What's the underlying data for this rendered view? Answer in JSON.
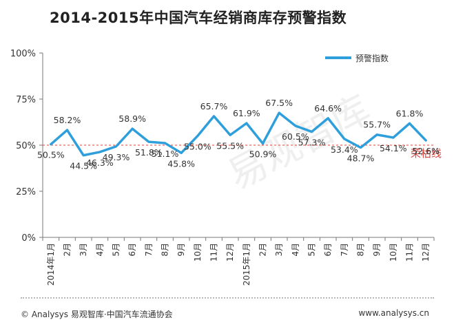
{
  "header": {
    "title": "2014-2015年中国汽车经销商库存预警指数"
  },
  "footer": {
    "source": "© Analysys 易观智库·中国汽车流通协会",
    "website": "www.analysys.cn"
  },
  "colors": {
    "series_line": "#2e9fdb",
    "threshold_line": "#d9433a",
    "axis": "#777777"
  },
  "chart_data": {
    "type": "line",
    "title": "2014-2015年中国汽车经销商库存预警指数",
    "xlabel": "",
    "ylabel": "",
    "ylim": [
      0,
      100
    ],
    "yticks": [
      "0%",
      "25%",
      "50%",
      "75%",
      "100%"
    ],
    "categories": [
      "2014年1月",
      "2月",
      "3月",
      "4月",
      "5月",
      "6月",
      "7月",
      "8月",
      "9月",
      "10月",
      "11月",
      "12月",
      "2015年1月",
      "2月",
      "3月",
      "4月",
      "5月",
      "6月",
      "7月",
      "8月",
      "9月",
      "10月",
      "11月",
      "12月"
    ],
    "series": [
      {
        "name": "预警指数",
        "values": [
          50.5,
          58.2,
          44.5,
          46.3,
          49.3,
          58.9,
          51.8,
          51.1,
          45.8,
          55.0,
          65.7,
          55.5,
          61.9,
          50.9,
          67.5,
          60.5,
          57.3,
          64.6,
          53.4,
          48.7,
          55.7,
          54.1,
          61.8,
          52.6
        ],
        "labels": [
          "50.5%",
          "58.2%",
          "44.5%",
          "46.3%",
          "49.3%",
          "58.9%",
          "51.8%",
          "51.1%",
          "45.8%",
          "55.0%",
          "65.7%",
          "55.5%",
          "61.9%",
          "50.9%",
          "67.5%",
          "60.5%",
          "57.3%",
          "64.6%",
          "53.4%",
          "48.7%",
          "55.7%",
          "54.1%",
          "61.8%",
          "52.6%"
        ]
      }
    ],
    "threshold": {
      "value": 50,
      "label": "荣枯线"
    },
    "legend": {
      "position": "top-right"
    },
    "grid": false,
    "watermark": "易观智库"
  }
}
